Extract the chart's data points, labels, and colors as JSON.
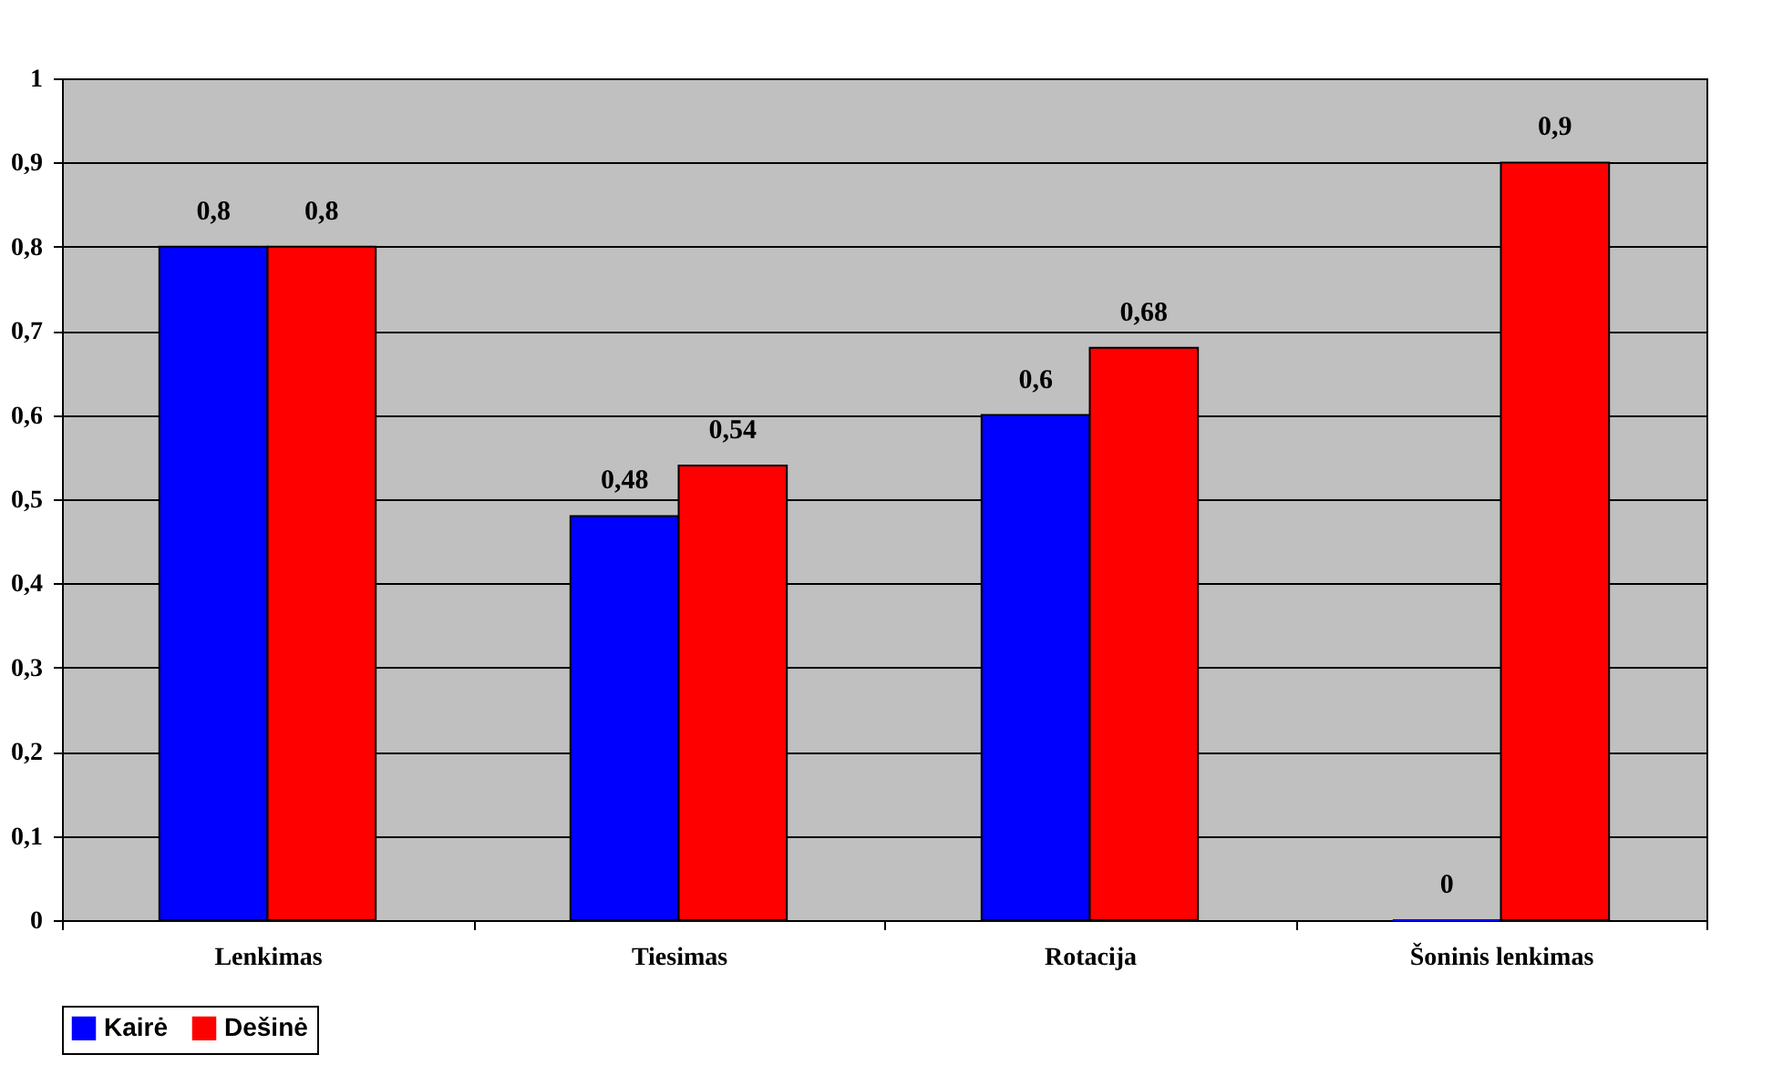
{
  "chart_data": {
    "type": "bar",
    "categories": [
      "Lenkimas",
      "Tiesimas",
      "Rotacija",
      "Šoninis lenkimas"
    ],
    "series": [
      {
        "name": "Kairė",
        "color": "#0000ff",
        "values": [
          0.8,
          0.48,
          0.6,
          0
        ],
        "value_labels": [
          "0,8",
          "0,48",
          "0,6",
          "0"
        ]
      },
      {
        "name": "Dešinė",
        "color": "#ff0000",
        "values": [
          0.8,
          0.54,
          0.68,
          0.9
        ],
        "value_labels": [
          "0,8",
          "0,54",
          "0,68",
          "0,9"
        ]
      }
    ],
    "ylim": [
      0,
      1
    ],
    "yticks": [
      0,
      {
        "value": 0.1,
        "label": "0,1"
      },
      {
        "value": 0.2,
        "label": "0,2"
      },
      {
        "value": 0.3,
        "label": "0,3"
      },
      {
        "value": 0.4,
        "label": "0,4"
      },
      {
        "value": 0.5,
        "label": "0,5"
      },
      {
        "value": 0.6,
        "label": "0,6"
      },
      {
        "value": 0.7,
        "label": "0,7"
      },
      {
        "value": 0.8,
        "label": "0,8"
      },
      {
        "value": 0.9,
        "label": "0,9"
      },
      1
    ],
    "grid": "y",
    "legend": "bottom"
  }
}
